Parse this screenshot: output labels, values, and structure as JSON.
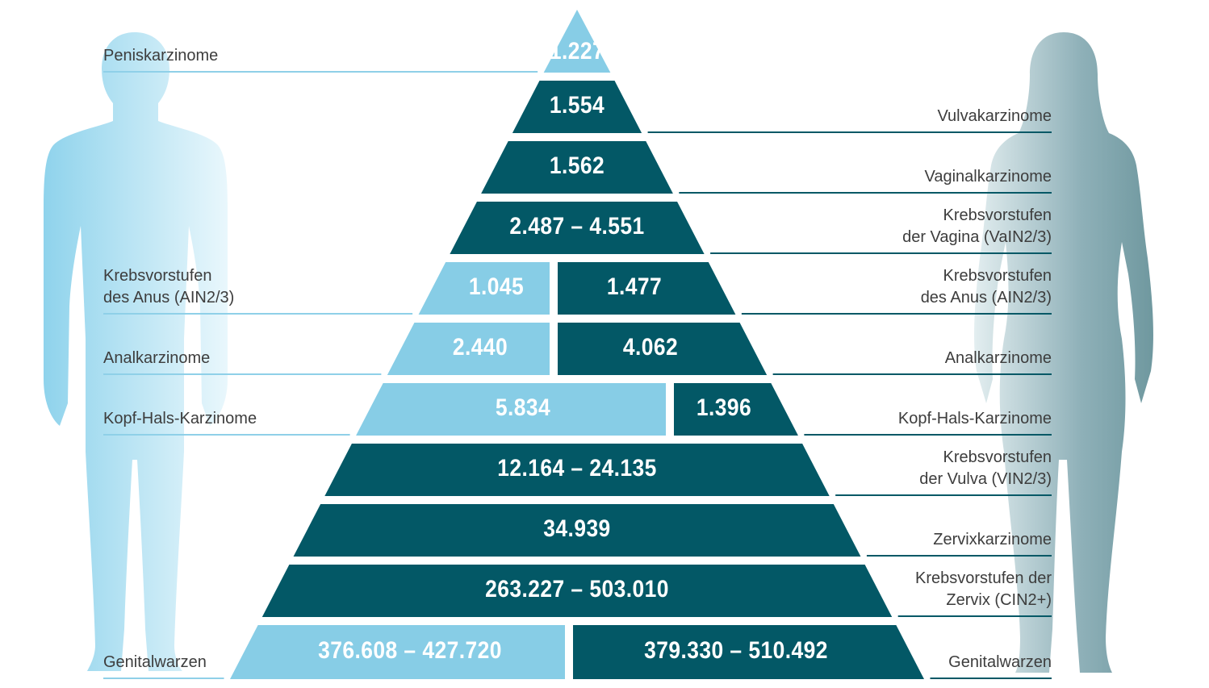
{
  "colors": {
    "male": "#87cde6",
    "female": "#035866",
    "leader_male": "#8fd0e8",
    "leader_female": "#035866",
    "text": "#3d3d3d",
    "male_silhouette": "#a9def1",
    "female_silhouette": "#7fa4ad"
  },
  "legend": {
    "male_figure": "male-silhouette",
    "female_figure": "female-silhouette"
  },
  "rows": [
    {
      "id": "peniskarzinome",
      "male": "1.227",
      "female": null,
      "male_label": [
        "Peniskarzinome"
      ],
      "female_label": null
    },
    {
      "id": "vulvakarzinome",
      "male": null,
      "female": "1.554",
      "male_label": null,
      "female_label": [
        "Vulvakarzinome"
      ]
    },
    {
      "id": "vaginalkarzinome",
      "male": null,
      "female": "1.562",
      "male_label": null,
      "female_label": [
        "Vaginalkarzinome"
      ]
    },
    {
      "id": "vain",
      "male": null,
      "female": "2.487 – 4.551",
      "male_label": null,
      "female_label": [
        "Krebsvorstufen",
        "der Vagina (VaIN2/3)"
      ]
    },
    {
      "id": "ain",
      "male": "1.045",
      "female": "1.477",
      "male_label": [
        "Krebsvorstufen",
        "des Anus (AIN2/3)"
      ],
      "female_label": [
        "Krebsvorstufen",
        "des Anus (AIN2/3)"
      ]
    },
    {
      "id": "analkarzinome",
      "male": "2.440",
      "female": "4.062",
      "male_label": [
        "Analkarzinome"
      ],
      "female_label": [
        "Analkarzinome"
      ]
    },
    {
      "id": "kopf-hals",
      "male": "5.834",
      "female": "1.396",
      "male_label": [
        "Kopf-Hals-Karzinome"
      ],
      "female_label": [
        "Kopf-Hals-Karzinome"
      ]
    },
    {
      "id": "vin",
      "male": null,
      "female": "12.164 – 24.135",
      "male_label": null,
      "female_label": [
        "Krebsvorstufen",
        "der Vulva (VIN2/3)"
      ]
    },
    {
      "id": "zervixkarzinome",
      "male": null,
      "female": "34.939",
      "male_label": null,
      "female_label": [
        "Zervixkarzinome"
      ]
    },
    {
      "id": "cin",
      "male": null,
      "female": "263.227 – 503.010",
      "male_label": null,
      "female_label": [
        "Krebsvorstufen der",
        "Zervix (CIN2+)"
      ]
    },
    {
      "id": "genitalwarzen",
      "male": "376.608 – 427.720",
      "female": "379.330 – 510.492",
      "male_label": [
        "Genitalwarzen"
      ],
      "female_label": [
        "Genitalwarzen"
      ]
    }
  ]
}
